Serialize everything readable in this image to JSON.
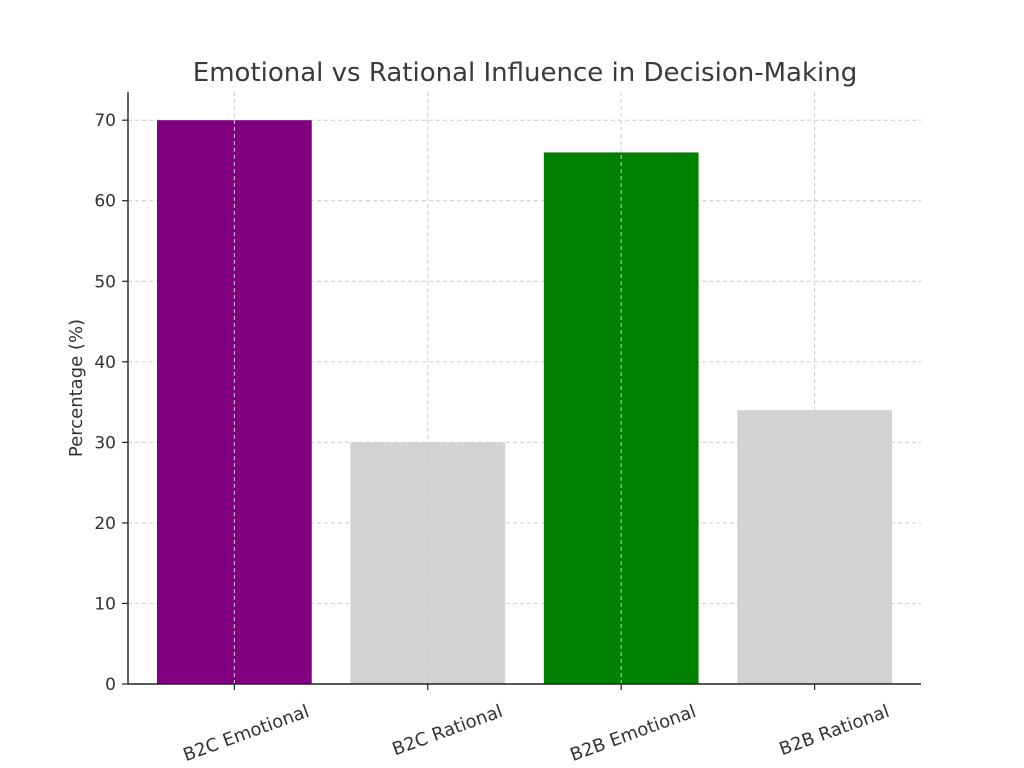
{
  "chart_data": {
    "type": "bar",
    "title": "Emotional vs Rational Influence in Decision-Making",
    "xlabel": "",
    "ylabel": "Percentage (%)",
    "categories": [
      "B2C Emotional",
      "B2C Rational",
      "B2B Emotional",
      "B2B Rational"
    ],
    "values": [
      70,
      30,
      66,
      34
    ],
    "colors": [
      "#800080",
      "#d3d3d3",
      "#008000",
      "#d3d3d3"
    ],
    "ylim": [
      0,
      73.5
    ],
    "yticks": [
      0,
      10,
      20,
      30,
      40,
      50,
      60,
      70
    ],
    "grid": true,
    "legend": "none"
  }
}
